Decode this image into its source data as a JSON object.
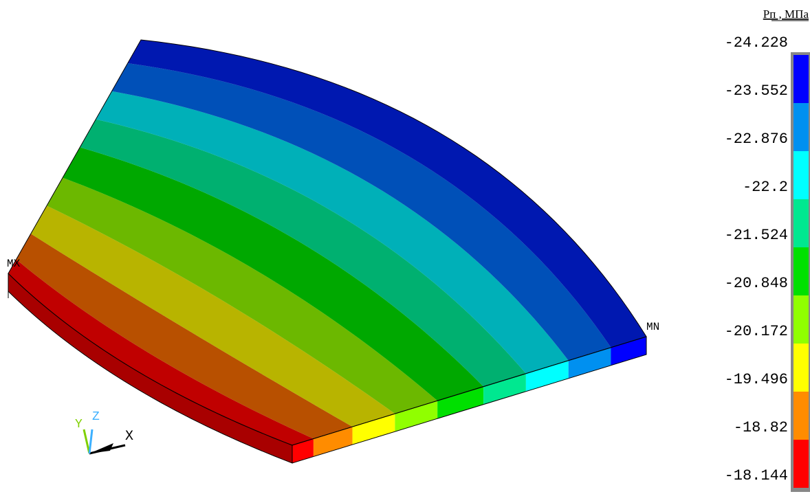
{
  "legend": {
    "title": "Pп , МПа",
    "labels": [
      "-24.228",
      "-23.552",
      "-22.876",
      "-22.2",
      "-21.524",
      "-20.848",
      "-20.172",
      "-19.496",
      "-18.82",
      "-18.144"
    ]
  },
  "annotations": {
    "max": "MX",
    "min": "MN"
  },
  "triad": {
    "x": "X",
    "y": "Y",
    "z": "Z"
  }
}
